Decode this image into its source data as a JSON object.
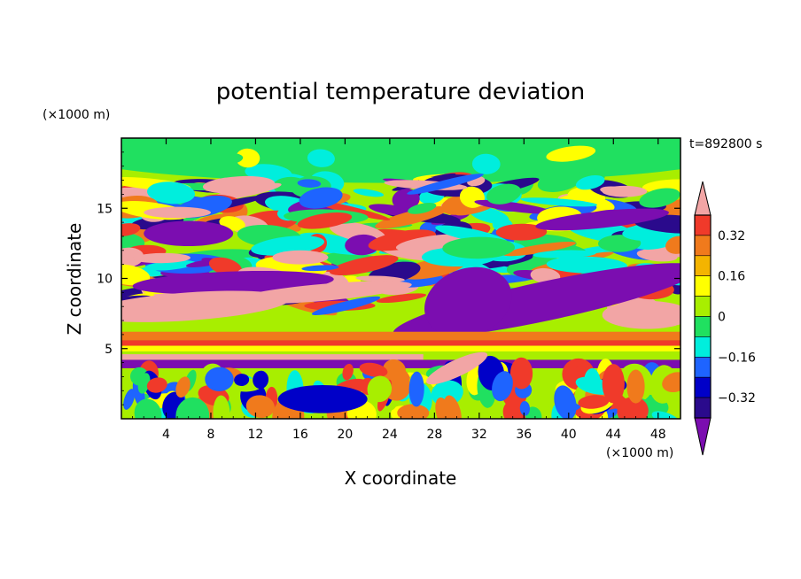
{
  "chart_data": {
    "type": "heatmap",
    "title": "potential temperature deviation",
    "xlabel": "X coordinate",
    "ylabel": "Z coordinate",
    "x_unit": "(×1000 m)",
    "y_unit": "(×1000 m)",
    "time_label": "t=892800 s",
    "xlim": [
      0,
      50
    ],
    "ylim": [
      0,
      20
    ],
    "x_ticks": [
      4,
      8,
      12,
      16,
      20,
      24,
      28,
      32,
      36,
      40,
      44,
      48
    ],
    "y_ticks": [
      5,
      10,
      15
    ],
    "colorbar": {
      "levels": [
        -0.4,
        -0.32,
        -0.24,
        -0.16,
        -0.08,
        0,
        0.08,
        0.16,
        0.24,
        0.32,
        0.4
      ],
      "labeled_ticks": [
        "0.32",
        "0.16",
        "0",
        "−0.16",
        "−0.32"
      ],
      "labeled_values": [
        0.32,
        0.16,
        0,
        -0.16,
        -0.32
      ],
      "colors_top_to_bottom": [
        "#f2a5a5",
        "#f03a2a",
        "#f07a1c",
        "#f4b400",
        "#ffff00",
        "#a8ee00",
        "#20e060",
        "#00eedd",
        "#1e64ff",
        "#0000c8",
        "#2a0a8c",
        "#7b0db0"
      ],
      "extend": "both"
    },
    "grid": false
  }
}
